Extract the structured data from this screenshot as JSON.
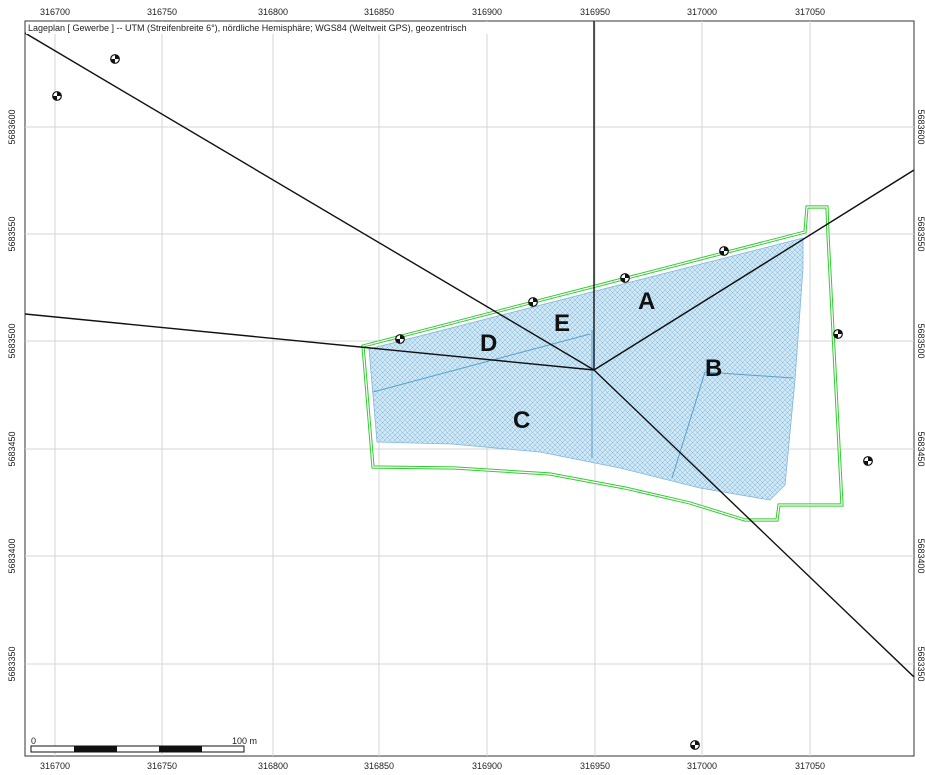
{
  "map": {
    "header": "Lageplan  [ Gewerbe ]  --  UTM (Streifenbreite 6°), nördliche Hemisphäre; WGS84 (Weltweit GPS), geozentrisch",
    "x_ticks": [
      "316700",
      "316750",
      "316800",
      "316850",
      "316900",
      "316950",
      "317000",
      "317050"
    ],
    "y_ticks": [
      "5683600",
      "5683550",
      "5683500",
      "5683450",
      "5683400",
      "5683350"
    ],
    "zones": [
      {
        "id": "A",
        "label": "A"
      },
      {
        "id": "B",
        "label": "B"
      },
      {
        "id": "C",
        "label": "C"
      },
      {
        "id": "D",
        "label": "D"
      },
      {
        "id": "E",
        "label": "E"
      }
    ],
    "scalebar": {
      "start_label": "0",
      "end_label": "100 m"
    },
    "colors": {
      "boundary": "#33cc33",
      "area_fill": "#c9e4f3",
      "area_grid": "#6baed6",
      "lines": "#111111",
      "grid": "#cfcfcf"
    },
    "receptor_count": 9
  }
}
